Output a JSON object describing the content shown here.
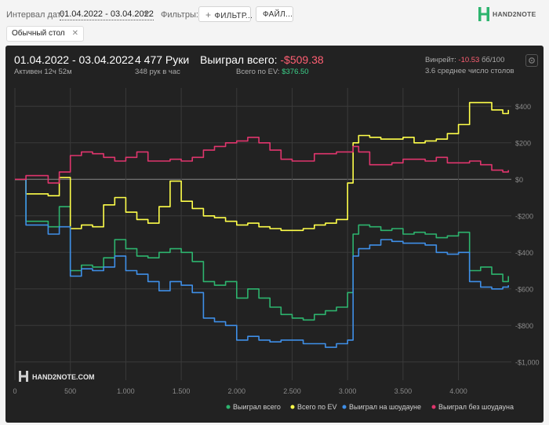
{
  "toolbar": {
    "interval_label": "Интервал дат:",
    "date_range": "01.04.2022 - 03.04.2022",
    "filters_label": "Фильтры:",
    "filter_button": "ФИЛЬТР...",
    "file_button": "ФАЙЛ...",
    "logo_text": "HAND2NOTE"
  },
  "active_filter_chip": {
    "label": "Обычный стол"
  },
  "panel": {
    "date_range": "01.04.2022 - 03.04.2022",
    "active_time": "Активен 12ч 52м",
    "hands": "4 477 Руки",
    "hands_per_hour": "348 рук в час",
    "won_total_label": "Выиграл всего:",
    "won_total_value": "-$509.38",
    "ev_total_label": "Всего по EV:",
    "ev_total_value": "$376.50",
    "winrate_label": "Винрейт:",
    "winrate_value": "-10.53",
    "winrate_unit": "бб/100",
    "tables_avg": "3.6 среднее число столов",
    "watermark": "HAND2NOTE.COM"
  },
  "colors": {
    "green": "#2db46e",
    "yellow": "#ffff4a",
    "blue": "#3f8fe8",
    "pink": "#e0356d",
    "panel_bg": "#222222"
  },
  "chart_data": {
    "type": "line",
    "xlim": [
      0,
      4477
    ],
    "ylim": [
      -1100,
      500
    ],
    "x_ticks": [
      0,
      500,
      1000,
      1500,
      2000,
      2500,
      3000,
      3500,
      4000
    ],
    "x_tick_labels": [
      "0",
      "500",
      "1.000",
      "1.500",
      "2.000",
      "2.500",
      "3.000",
      "3.500",
      "4.000"
    ],
    "y_ticks": [
      400,
      200,
      0,
      -200,
      -400,
      -600,
      -800,
      -1000
    ],
    "y_tick_labels": [
      "$400",
      "$200",
      "$0",
      "-$200",
      "-$400",
      "-$600",
      "-$800",
      "-$1,000"
    ],
    "grid": true,
    "legend_position": "bottom-right",
    "series": [
      {
        "name": "Выиграл всего",
        "color": "#2db46e",
        "x": [
          0,
          100,
          300,
          400,
          500,
          600,
          700,
          800,
          900,
          1000,
          1100,
          1200,
          1300,
          1400,
          1500,
          1600,
          1700,
          1800,
          1900,
          2000,
          2100,
          2200,
          2300,
          2400,
          2500,
          2600,
          2700,
          2800,
          2900,
          3000,
          3050,
          3100,
          3200,
          3300,
          3400,
          3500,
          3600,
          3700,
          3800,
          3900,
          4000,
          4100,
          4200,
          4300,
          4400,
          4450
        ],
        "y": [
          0,
          -230,
          -260,
          -150,
          -500,
          -470,
          -480,
          -430,
          -330,
          -380,
          -420,
          -430,
          -400,
          -380,
          -400,
          -450,
          -560,
          -580,
          -560,
          -650,
          -600,
          -650,
          -700,
          -740,
          -760,
          -770,
          -740,
          -720,
          -700,
          -620,
          -300,
          -250,
          -260,
          -280,
          -270,
          -300,
          -290,
          -300,
          -320,
          -310,
          -290,
          -500,
          -480,
          -520,
          -560,
          -530
        ]
      },
      {
        "name": "Всего по EV",
        "color": "#ffff4a",
        "x": [
          0,
          100,
          300,
          400,
          500,
          600,
          700,
          800,
          900,
          1000,
          1100,
          1200,
          1300,
          1400,
          1500,
          1600,
          1700,
          1800,
          1900,
          2000,
          2100,
          2200,
          2300,
          2400,
          2500,
          2600,
          2700,
          2800,
          2900,
          3000,
          3050,
          3100,
          3200,
          3300,
          3400,
          3500,
          3600,
          3700,
          3800,
          3900,
          4000,
          4100,
          4200,
          4300,
          4400,
          4450
        ],
        "y": [
          0,
          -80,
          -90,
          10,
          -270,
          -250,
          -260,
          -140,
          -100,
          -180,
          -220,
          -240,
          -150,
          -10,
          -120,
          -160,
          -200,
          -210,
          -230,
          -250,
          -240,
          -260,
          -270,
          -280,
          -280,
          -270,
          -250,
          -240,
          -220,
          -20,
          200,
          240,
          230,
          220,
          220,
          230,
          200,
          210,
          220,
          250,
          300,
          420,
          420,
          380,
          360,
          380
        ]
      },
      {
        "name": "Выиграл на шоудауне",
        "color": "#3f8fe8",
        "x": [
          0,
          100,
          300,
          400,
          500,
          600,
          700,
          800,
          900,
          1000,
          1100,
          1200,
          1300,
          1400,
          1500,
          1600,
          1700,
          1800,
          1900,
          2000,
          2100,
          2200,
          2300,
          2400,
          2500,
          2600,
          2700,
          2800,
          2900,
          3000,
          3050,
          3100,
          3200,
          3300,
          3400,
          3500,
          3600,
          3700,
          3800,
          3900,
          4000,
          4100,
          4200,
          4300,
          4400,
          4450
        ],
        "y": [
          0,
          -250,
          -300,
          -260,
          -530,
          -490,
          -500,
          -480,
          -420,
          -500,
          -520,
          -560,
          -610,
          -560,
          -580,
          -620,
          -760,
          -780,
          -800,
          -880,
          -860,
          -880,
          -890,
          -880,
          -880,
          -900,
          -900,
          -920,
          -900,
          -880,
          -420,
          -380,
          -360,
          -330,
          -340,
          -350,
          -350,
          -360,
          -400,
          -410,
          -400,
          -560,
          -590,
          -600,
          -590,
          -580
        ]
      },
      {
        "name": "Выиграл без шоудауна",
        "color": "#e0356d",
        "x": [
          0,
          100,
          300,
          400,
          500,
          600,
          700,
          800,
          900,
          1000,
          1100,
          1200,
          1300,
          1400,
          1500,
          1600,
          1700,
          1800,
          1900,
          2000,
          2100,
          2200,
          2300,
          2400,
          2500,
          2600,
          2700,
          2800,
          2900,
          3000,
          3050,
          3100,
          3200,
          3300,
          3400,
          3500,
          3600,
          3700,
          3800,
          3900,
          4000,
          4100,
          4200,
          4300,
          4400,
          4450
        ],
        "y": [
          0,
          20,
          -20,
          40,
          130,
          150,
          140,
          120,
          100,
          120,
          150,
          100,
          100,
          110,
          100,
          120,
          160,
          180,
          200,
          210,
          230,
          200,
          160,
          110,
          100,
          100,
          140,
          140,
          150,
          150,
          180,
          150,
          80,
          80,
          90,
          110,
          110,
          100,
          120,
          90,
          90,
          100,
          80,
          50,
          40,
          50
        ]
      }
    ]
  }
}
